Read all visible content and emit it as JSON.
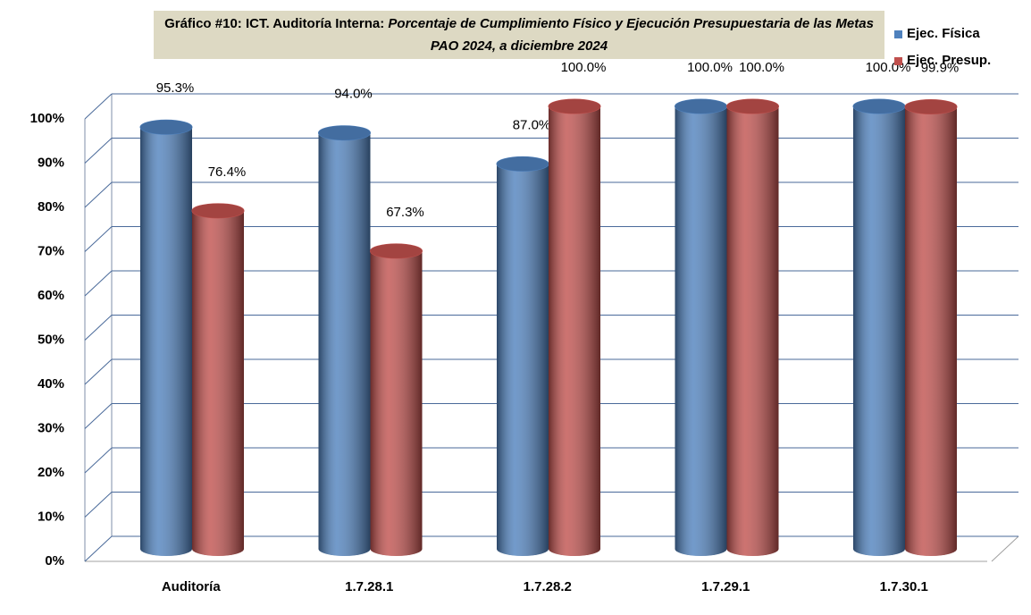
{
  "chart_data": {
    "type": "bar3d",
    "title": "Gráfico #10: ICT. Auditoría Interna:",
    "subtitle": "Porcentaje de  Cumplimiento Físico y  Ejecución Presupuestaria de las Metas  PAO 2024, a  diciembre 2024",
    "categories": [
      "Auditoría",
      "1.7.28.1",
      "1.7.28.2",
      "1.7.29.1",
      "1.7.30.1"
    ],
    "series": [
      {
        "name": "Ejec. Física",
        "color": "#4f81bd",
        "values": [
          95.3,
          94.0,
          87.0,
          100.0,
          100.0
        ],
        "value_labels": [
          "95.3%",
          "94.0%",
          "87.0%",
          "100.0%",
          "100.0%"
        ]
      },
      {
        "name": "Ejec. Presup.",
        "color": "#c0504d",
        "values": [
          76.4,
          67.3,
          100.0,
          100.0,
          99.9
        ],
        "value_labels": [
          "76.4%",
          "67.3%",
          "100.0%",
          "100.0%",
          "99.9%"
        ]
      }
    ],
    "ylim": [
      0,
      100
    ],
    "yticks": [
      {
        "value": 0,
        "label": "0%"
      },
      {
        "value": 10,
        "label": "10%"
      },
      {
        "value": 20,
        "label": "20%"
      },
      {
        "value": 30,
        "label": "30%"
      },
      {
        "value": 40,
        "label": "40%"
      },
      {
        "value": 50,
        "label": "50%"
      },
      {
        "value": 60,
        "label": "60%"
      },
      {
        "value": 70,
        "label": "70%"
      },
      {
        "value": 80,
        "label": "80%"
      },
      {
        "value": 90,
        "label": "90%"
      },
      {
        "value": 100,
        "label": "100%"
      }
    ],
    "grid": true,
    "legend": "top-right"
  }
}
